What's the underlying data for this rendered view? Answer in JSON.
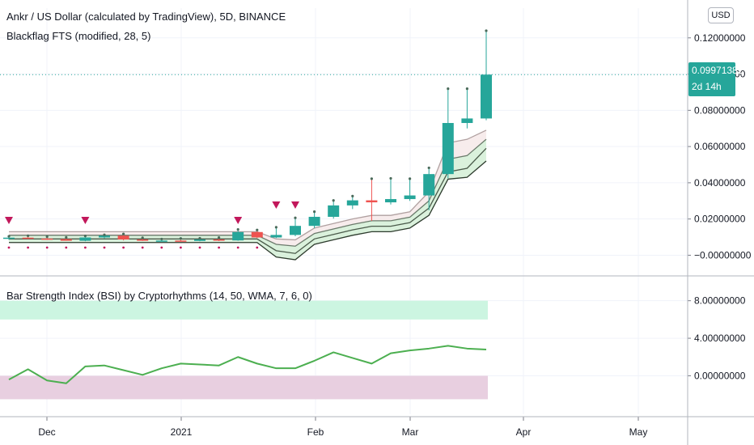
{
  "header": {
    "symbol_title": "Ankr / US Dollar (calculated by TradingView), 5D, BINANCE",
    "overlay_title": "Blackflag FTS (modified, 28, 5)",
    "currency_button": "USD"
  },
  "price_tag": {
    "price": "0.09971382",
    "countdown": "2d 14h"
  },
  "indicator": {
    "title": "Bar Strength Index (BSI) by Cryptorhythms (14, 50, WMA, 7, 6, 0)"
  },
  "colors": {
    "up": "#26a69a",
    "down": "#ef5350",
    "bsi_line": "#4caf50",
    "upper_zone": "#ccf5e1",
    "lower_zone": "#e8cfe0",
    "marker": "#c2185b"
  },
  "chart_data": [
    {
      "type": "candlestick",
      "price_axis_ticks": [
        "0.12000000",
        "0.10000000",
        "0.08000000",
        "0.06000000",
        "0.04000000",
        "0.02000000",
        "−0.00000000"
      ],
      "ylim": [
        -0.0065,
        0.1275
      ],
      "current_price": 0.09971382,
      "time_axis_ticks": [
        "Dec",
        "2021",
        "Feb",
        "Mar",
        "Apr",
        "May"
      ],
      "candles": [
        {
          "o": 0.0093,
          "h": 0.01,
          "l": 0.0085,
          "c": 0.0097
        },
        {
          "o": 0.0097,
          "h": 0.0103,
          "l": 0.009,
          "c": 0.0092
        },
        {
          "o": 0.0092,
          "h": 0.0098,
          "l": 0.0085,
          "c": 0.0089
        },
        {
          "o": 0.0089,
          "h": 0.0094,
          "l": 0.008,
          "c": 0.008
        },
        {
          "o": 0.008,
          "h": 0.0102,
          "l": 0.0077,
          "c": 0.0098
        },
        {
          "o": 0.0098,
          "h": 0.0108,
          "l": 0.0093,
          "c": 0.0108
        },
        {
          "o": 0.0108,
          "h": 0.0113,
          "l": 0.0082,
          "c": 0.0087
        },
        {
          "o": 0.0087,
          "h": 0.0092,
          "l": 0.0079,
          "c": 0.008
        },
        {
          "o": 0.008,
          "h": 0.0085,
          "l": 0.0077,
          "c": 0.0081
        },
        {
          "o": 0.0081,
          "h": 0.0088,
          "l": 0.0078,
          "c": 0.0079
        },
        {
          "o": 0.0079,
          "h": 0.0089,
          "l": 0.0077,
          "c": 0.0087
        },
        {
          "o": 0.0087,
          "h": 0.0093,
          "l": 0.0078,
          "c": 0.0082
        },
        {
          "o": 0.0082,
          "h": 0.0138,
          "l": 0.008,
          "c": 0.0128
        },
        {
          "o": 0.0128,
          "h": 0.0135,
          "l": 0.0095,
          "c": 0.0098
        },
        {
          "o": 0.0098,
          "h": 0.015,
          "l": 0.0095,
          "c": 0.0112
        },
        {
          "o": 0.0112,
          "h": 0.0202,
          "l": 0.0105,
          "c": 0.0162
        },
        {
          "o": 0.0162,
          "h": 0.0236,
          "l": 0.015,
          "c": 0.0212
        },
        {
          "o": 0.0212,
          "h": 0.0298,
          "l": 0.0202,
          "c": 0.0275
        },
        {
          "o": 0.0275,
          "h": 0.0322,
          "l": 0.0255,
          "c": 0.0303
        },
        {
          "o": 0.0303,
          "h": 0.0418,
          "l": 0.019,
          "c": 0.0292
        },
        {
          "o": 0.0292,
          "h": 0.042,
          "l": 0.028,
          "c": 0.031
        },
        {
          "o": 0.031,
          "h": 0.0418,
          "l": 0.03,
          "c": 0.033
        },
        {
          "o": 0.033,
          "h": 0.0478,
          "l": 0.0248,
          "c": 0.0448
        },
        {
          "o": 0.0448,
          "h": 0.0915,
          "l": 0.0425,
          "c": 0.073
        },
        {
          "o": 0.073,
          "h": 0.0915,
          "l": 0.07,
          "c": 0.0755
        },
        {
          "o": 0.0755,
          "h": 0.1235,
          "l": 0.0745,
          "c": 0.0997
        }
      ],
      "band_lines": [
        [
          0.013,
          0.013,
          0.013,
          0.013,
          0.013,
          0.013,
          0.013,
          0.013,
          0.013,
          0.013,
          0.013,
          0.013,
          0.013,
          0.013,
          0.009,
          0.0085,
          0.015,
          0.0175,
          0.02,
          0.022,
          0.022,
          0.024,
          0.035,
          0.062,
          0.064,
          0.069
        ],
        [
          0.011,
          0.011,
          0.011,
          0.011,
          0.011,
          0.011,
          0.011,
          0.011,
          0.011,
          0.011,
          0.011,
          0.011,
          0.011,
          0.011,
          0.006,
          0.005,
          0.012,
          0.0145,
          0.017,
          0.019,
          0.019,
          0.021,
          0.03,
          0.053,
          0.055,
          0.064
        ],
        [
          0.009,
          0.009,
          0.009,
          0.009,
          0.009,
          0.009,
          0.009,
          0.009,
          0.009,
          0.009,
          0.009,
          0.009,
          0.009,
          0.009,
          0.0025,
          0.001,
          0.009,
          0.0115,
          0.014,
          0.016,
          0.016,
          0.018,
          0.026,
          0.046,
          0.048,
          0.059
        ],
        [
          0.007,
          0.007,
          0.007,
          0.007,
          0.007,
          0.007,
          0.007,
          0.007,
          0.007,
          0.007,
          0.007,
          0.007,
          0.007,
          0.007,
          -0.001,
          -0.0025,
          0.006,
          0.0085,
          0.011,
          0.013,
          0.013,
          0.015,
          0.022,
          0.042,
          0.043,
          0.052
        ]
      ],
      "down_markers": [
        0,
        4,
        12,
        14,
        15
      ]
    },
    {
      "type": "line",
      "title": "Bar Strength Index (BSI) by Cryptorhythms (14, 50, WMA, 7, 6, 0)",
      "axis_ticks": [
        "8.00000000",
        "4.00000000",
        "0.00000000"
      ],
      "ylim": [
        -4.1,
        10.3
      ],
      "upper_zone": [
        6.0,
        8.0
      ],
      "lower_zone": [
        -2.5,
        0.0
      ],
      "values": [
        -0.4,
        0.7,
        -0.5,
        -0.8,
        1.0,
        1.1,
        0.6,
        0.1,
        0.8,
        1.3,
        1.2,
        1.1,
        2.0,
        1.3,
        0.8,
        0.8,
        1.6,
        2.5,
        1.9,
        1.3,
        2.4,
        2.7,
        2.9,
        3.2,
        2.9,
        2.8
      ]
    }
  ]
}
